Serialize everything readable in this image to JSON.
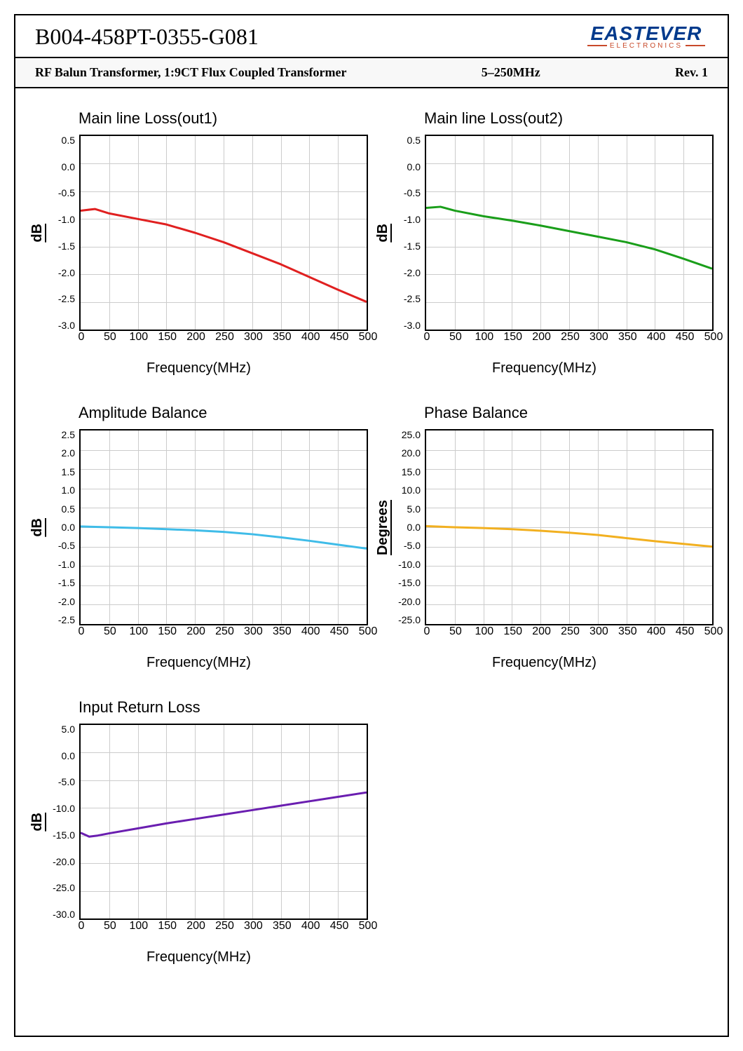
{
  "header": {
    "part_number": "B004-458PT-0355-G081",
    "logo_main": "EASTEVER",
    "logo_sub": "ELECTRONICS"
  },
  "subheader": {
    "description": "RF Balun Transformer, 1:9CT Flux Coupled Transformer",
    "freq_range": "5–250MHz",
    "revision": "Rev. 1"
  },
  "common_x": {
    "label": "Frequency(MHz)",
    "min": 0,
    "max": 500,
    "ticks": [
      0,
      50,
      100,
      150,
      200,
      250,
      300,
      350,
      400,
      450,
      500
    ]
  },
  "charts": [
    {
      "id": "chart-out1",
      "title": "Main line Loss(out1)",
      "ylabel": "dB",
      "ymin": -3.0,
      "ymax": 0.5,
      "yticks": [
        "0.5",
        "0.0",
        "-0.5",
        "-1.0",
        "-1.5",
        "-2.0",
        "-2.5",
        "-3.0"
      ],
      "line_color": "#e02020",
      "line_width": 3,
      "grid_color": "#cccccc",
      "data": [
        [
          0,
          -0.85
        ],
        [
          25,
          -0.82
        ],
        [
          50,
          -0.9
        ],
        [
          100,
          -1.0
        ],
        [
          150,
          -1.1
        ],
        [
          200,
          -1.25
        ],
        [
          250,
          -1.42
        ],
        [
          300,
          -1.62
        ],
        [
          350,
          -1.82
        ],
        [
          400,
          -2.05
        ],
        [
          450,
          -2.28
        ],
        [
          500,
          -2.5
        ]
      ]
    },
    {
      "id": "chart-out2",
      "title": "Main line Loss(out2)",
      "ylabel": "dB",
      "ymin": -3.0,
      "ymax": 0.5,
      "yticks": [
        "0.5",
        "0.0",
        "-0.5",
        "-1.0",
        "-1.5",
        "-2.0",
        "-2.5",
        "-3.0"
      ],
      "line_color": "#1a9e1a",
      "line_width": 3,
      "grid_color": "#cccccc",
      "data": [
        [
          0,
          -0.8
        ],
        [
          25,
          -0.78
        ],
        [
          50,
          -0.85
        ],
        [
          100,
          -0.95
        ],
        [
          150,
          -1.03
        ],
        [
          200,
          -1.12
        ],
        [
          250,
          -1.22
        ],
        [
          300,
          -1.32
        ],
        [
          350,
          -1.42
        ],
        [
          400,
          -1.55
        ],
        [
          450,
          -1.72
        ],
        [
          500,
          -1.9
        ]
      ]
    },
    {
      "id": "chart-amp",
      "title": "Amplitude Balance",
      "ylabel": "dB",
      "ymin": -2.5,
      "ymax": 2.5,
      "yticks": [
        "2.5",
        "2.0",
        "1.5",
        "1.0",
        "0.5",
        "0.0",
        "-0.5",
        "-1.0",
        "-1.5",
        "-2.0",
        "-2.5"
      ],
      "line_color": "#3fbce8",
      "line_width": 3,
      "grid_color": "#cccccc",
      "data": [
        [
          0,
          0.02
        ],
        [
          50,
          0.0
        ],
        [
          100,
          -0.02
        ],
        [
          150,
          -0.05
        ],
        [
          200,
          -0.08
        ],
        [
          250,
          -0.12
        ],
        [
          300,
          -0.18
        ],
        [
          350,
          -0.26
        ],
        [
          400,
          -0.35
        ],
        [
          450,
          -0.45
        ],
        [
          500,
          -0.55
        ]
      ]
    },
    {
      "id": "chart-phase",
      "title": "Phase  Balance",
      "ylabel": "Degrees",
      "ymin": -25.0,
      "ymax": 25.0,
      "yticks": [
        "25.0",
        "20.0",
        "15.0",
        "10.0",
        "5.0",
        "0.0",
        "-5.0",
        "-10.0",
        "-15.0",
        "-20.0",
        "-25.0"
      ],
      "line_color": "#f2b020",
      "line_width": 3,
      "grid_color": "#cccccc",
      "data": [
        [
          0,
          0.3
        ],
        [
          50,
          0.0
        ],
        [
          100,
          -0.2
        ],
        [
          150,
          -0.5
        ],
        [
          200,
          -0.9
        ],
        [
          250,
          -1.4
        ],
        [
          300,
          -2.0
        ],
        [
          350,
          -2.8
        ],
        [
          400,
          -3.6
        ],
        [
          450,
          -4.3
        ],
        [
          500,
          -5.0
        ]
      ]
    },
    {
      "id": "chart-return",
      "title": "Input Return Loss",
      "ylabel": "dB",
      "ymin": -30.0,
      "ymax": 5.0,
      "yticks": [
        "5.0",
        "0.0",
        "-5.0",
        "-10.0",
        "-15.0",
        "-20.0",
        "-25.0",
        "-30.0"
      ],
      "line_color": "#6a1eb0",
      "line_width": 3,
      "grid_color": "#cccccc",
      "data": [
        [
          0,
          -14.5
        ],
        [
          15,
          -15.2
        ],
        [
          30,
          -15.0
        ],
        [
          50,
          -14.6
        ],
        [
          100,
          -13.7
        ],
        [
          150,
          -12.8
        ],
        [
          200,
          -12.0
        ],
        [
          250,
          -11.2
        ],
        [
          300,
          -10.4
        ],
        [
          350,
          -9.6
        ],
        [
          400,
          -8.8
        ],
        [
          450,
          -8.0
        ],
        [
          500,
          -7.2
        ]
      ]
    }
  ]
}
